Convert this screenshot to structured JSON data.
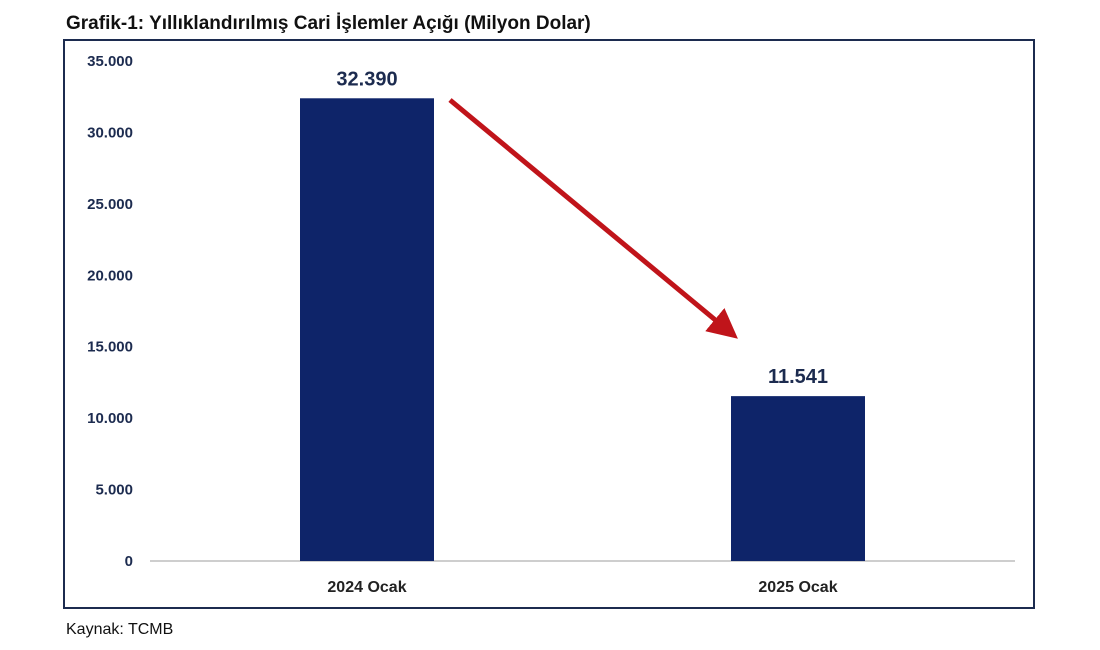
{
  "title": "Grafik-1: Yıllıklandırılmış Cari İşlemler Açığı (Milyon Dolar)",
  "source_note": "Kaynak: TCMB",
  "colors": {
    "bar": "#0e2469",
    "axis_text": "#1c2b4f",
    "arrow": "#c0141a",
    "frame": "#1c2b4f",
    "baseline": "#bdbdbd"
  },
  "chart_data": {
    "type": "bar",
    "categories": [
      "2024 Ocak",
      "2025 Ocak"
    ],
    "values": [
      32390,
      11541
    ],
    "value_labels": [
      "32.390",
      "11.541"
    ],
    "ylim": [
      0,
      35000
    ],
    "y_ticks": [
      0,
      5000,
      10000,
      15000,
      20000,
      25000,
      30000,
      35000
    ],
    "y_tick_labels": [
      "0",
      "5.000",
      "10.000",
      "15.000",
      "20.000",
      "25.000",
      "30.000",
      "35.000"
    ],
    "grid": false,
    "legend": "none",
    "annotation": "red arrow pointing downward from 2024 Ocak bar to 2025 Ocak bar"
  }
}
